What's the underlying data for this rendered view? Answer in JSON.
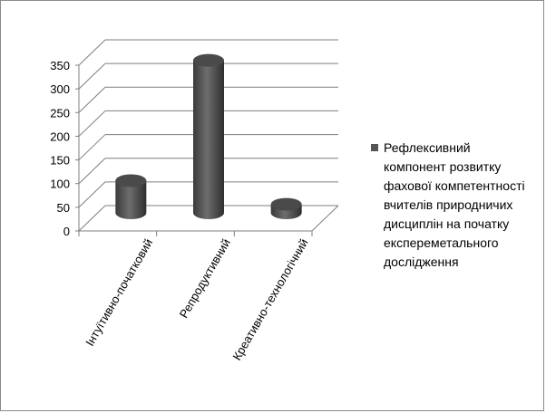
{
  "chart_data": {
    "type": "bar",
    "categories": [
      "Інтуїтивно-початковий",
      "Репродуктивний",
      "Креативно-технологічний"
    ],
    "series": [
      {
        "name": "Рефлексивний\nкомпонент розвитку\nфахової компетентності\nвчителів природничих\nдисциплін на початку\nекспереметального\nдослідження",
        "values": [
          68,
          322,
          18
        ]
      }
    ],
    "y_ticks": [
      0,
      50,
      100,
      150,
      200,
      250,
      300,
      350
    ],
    "ylim": [
      0,
      350
    ],
    "grid": true,
    "legend_position": "right",
    "bar_color": "#555555"
  }
}
